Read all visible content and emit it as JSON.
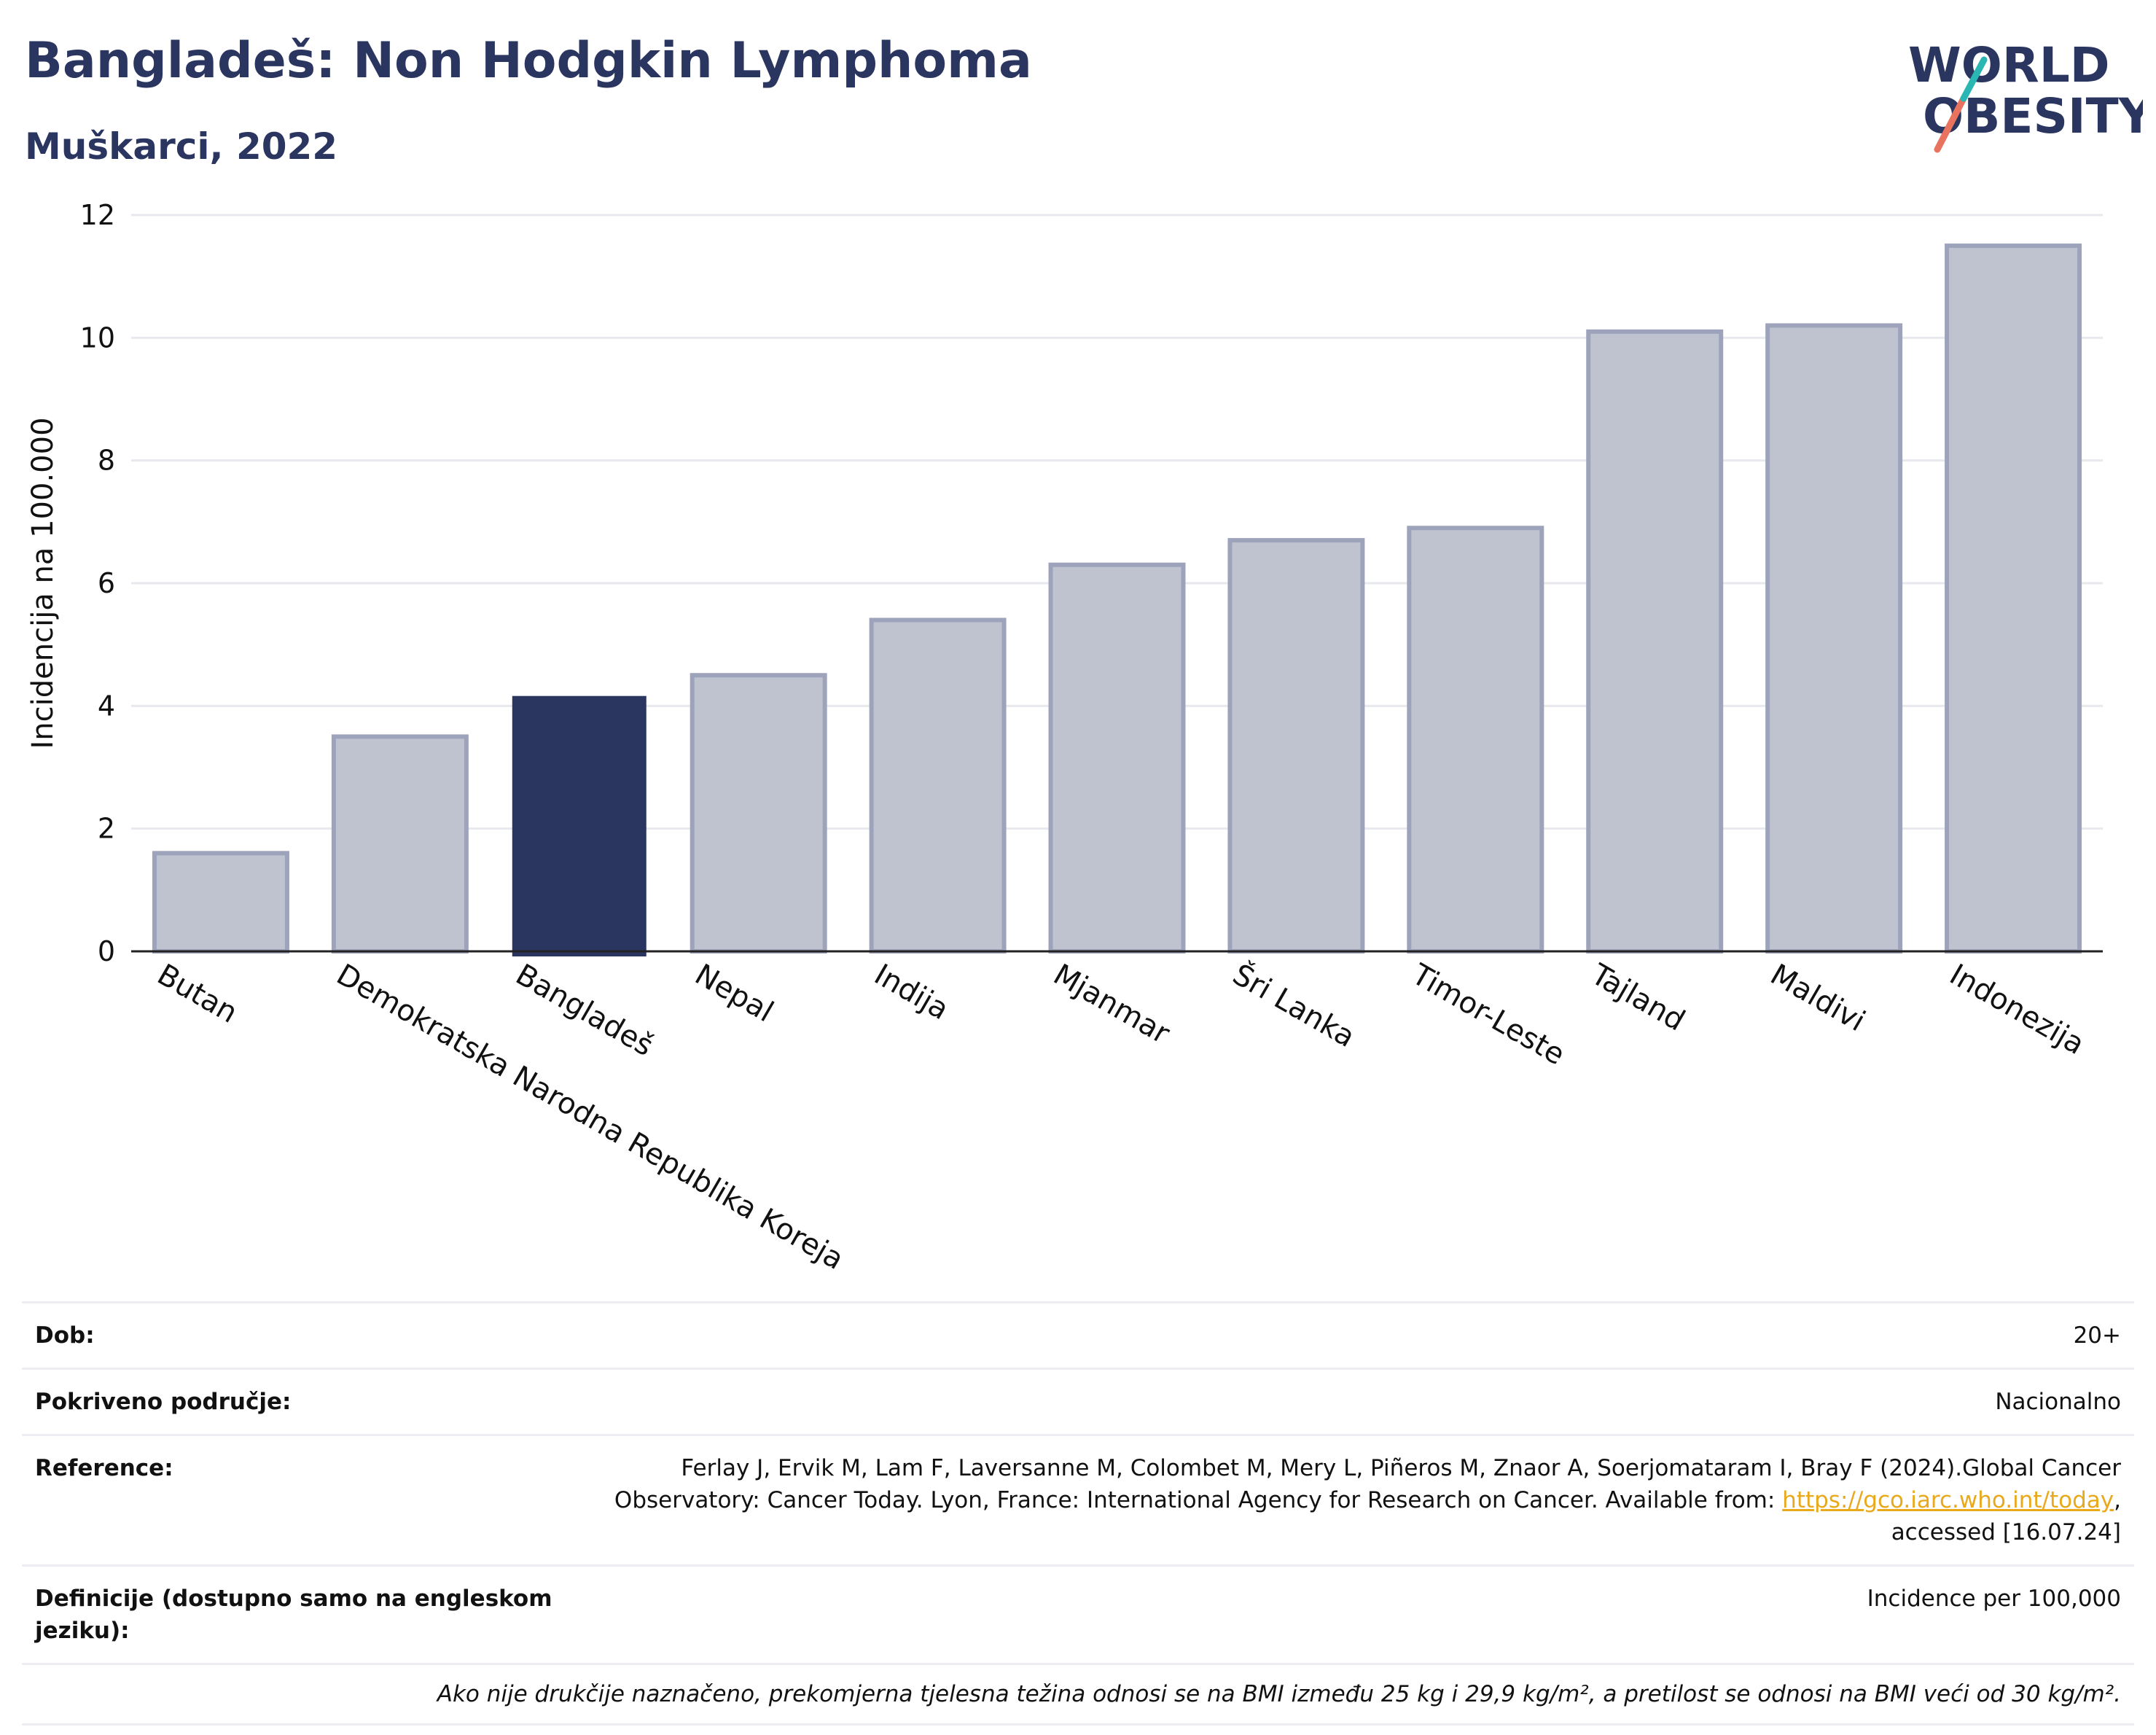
{
  "header": {
    "title": "Bangladeš: Non Hodgkin Lymphoma",
    "subtitle": "Muškarci, 2022"
  },
  "logo": {
    "line1": "WORLD",
    "line2": "OBESITY",
    "accent_teal": "#2ab7b3",
    "accent_coral": "#e8735f"
  },
  "colors": {
    "highlight": "#2a3560",
    "bar": "#bfc3d0",
    "bar_edge": "#9da3bb",
    "grid": "#e7e9ee",
    "axis": "#222222"
  },
  "chart_data": {
    "type": "bar",
    "title": "Bangladeš: Non Hodgkin Lymphoma",
    "subtitle": "Muškarci, 2022",
    "ylabel": "Incidencija na 100.000",
    "xlabel": "",
    "ylim": [
      0,
      12
    ],
    "yticks": [
      0,
      2,
      4,
      6,
      8,
      10,
      12
    ],
    "grid": true,
    "categories": [
      "Butan",
      "Demokratska Narodna Republika Koreja",
      "Bangladeš",
      "Nepal",
      "Indija",
      "Mjanmar",
      "Šri Lanka",
      "Timor-Leste",
      "Tajland",
      "Maldivi",
      "Indonezija"
    ],
    "values": [
      1.6,
      3.5,
      4.15,
      4.5,
      5.4,
      6.3,
      6.7,
      6.9,
      10.1,
      10.2,
      11.5
    ],
    "highlight": "Bangladeš"
  },
  "info": {
    "age_label": "Dob:",
    "age_value": "20+",
    "coverage_label": "Pokriveno područje:",
    "coverage_value": "Nacionalno",
    "references_label": "Reference:",
    "references_text_1": "Ferlay J, Ervik M, Lam F, Laversanne M, Colombet M, Mery L, Piñeros M, Znaor A, Soerjomataram I, Bray F (2024).Global Cancer",
    "references_text_2": "Observatory: Cancer Today. Lyon, France: International Agency for Research on Cancer. Available from: ",
    "references_link": "https://gco.iarc.who.int/today",
    "references_text_3": ",",
    "references_text_4": "accessed [16.07.24]",
    "definitions_label": "Definicije (dostupno samo na engleskom jeziku):",
    "definitions_value": "Incidence per 100,000",
    "note": "Ako nije drukčije naznačeno, prekomjerna tjelesna težina odnosi se na BMI između 25 kg i 29,9 kg/m², a pretilost se odnosi na BMI veći od 30 kg/m²."
  }
}
